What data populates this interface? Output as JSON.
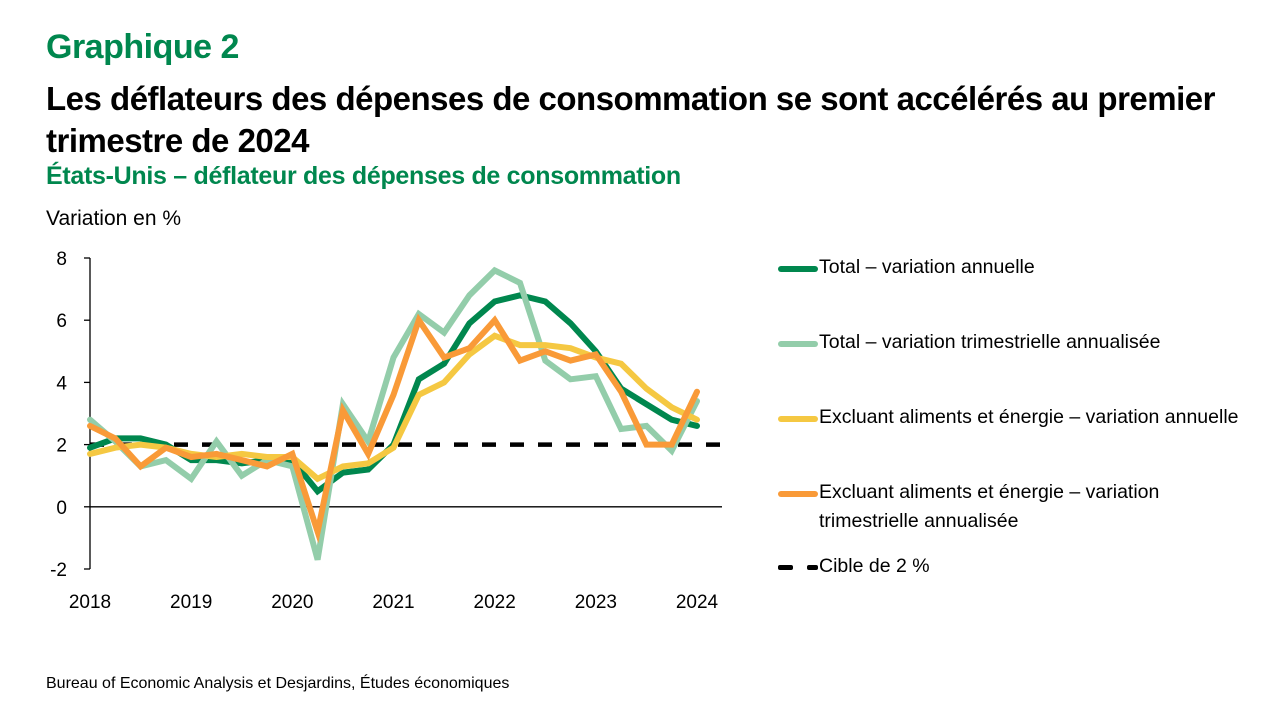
{
  "header": {
    "kicker": "Graphique 2",
    "title": "Les déflateurs des dépenses de consommation se sont accélérés au premier trimestre de 2024",
    "subtitle": "États-Unis – déflateur des dépenses de consommation",
    "y_unit_label": "Variation en %"
  },
  "footer": {
    "source": "Bureau of Economic Analysis et Desjardins, Études économiques"
  },
  "colors": {
    "total_annual": "#00874e",
    "total_quarterly": "#93cdaa",
    "core_annual": "#f5c842",
    "core_quarterly": "#f99a38",
    "target": "#000000",
    "title_green": "#00874e"
  },
  "chart_data": {
    "type": "line",
    "title": "États-Unis – déflateur des dépenses de consommation",
    "xlabel": "",
    "ylabel": "Variation en %",
    "ylim": [
      -2,
      8
    ],
    "yticks": [
      -2,
      0,
      2,
      4,
      6,
      8
    ],
    "xlim": [
      2018,
      2024
    ],
    "xticks": [
      "2018",
      "2019",
      "2020",
      "2021",
      "2022",
      "2023",
      "2024"
    ],
    "grid": false,
    "legend_position": "right",
    "x": [
      "2018T1",
      "2018T2",
      "2018T3",
      "2018T4",
      "2019T1",
      "2019T2",
      "2019T3",
      "2019T4",
      "2020T1",
      "2020T2",
      "2020T3",
      "2020T4",
      "2021T1",
      "2021T2",
      "2021T3",
      "2021T4",
      "2022T1",
      "2022T2",
      "2022T3",
      "2022T4",
      "2023T1",
      "2023T2",
      "2023T3",
      "2023T4",
      "2024T1"
    ],
    "series": [
      {
        "key": "total_annual",
        "name": "Total – variation annuelle",
        "values": [
          1.9,
          2.2,
          2.2,
          2.0,
          1.5,
          1.5,
          1.4,
          1.5,
          1.5,
          0.5,
          1.1,
          1.2,
          2.0,
          4.1,
          4.6,
          5.9,
          6.6,
          6.8,
          6.6,
          5.9,
          5.0,
          3.8,
          3.3,
          2.8,
          2.6
        ]
      },
      {
        "key": "total_quarterly",
        "name": "Total – variation trimestrielle annualisée",
        "values": [
          2.8,
          2.1,
          1.3,
          1.5,
          0.9,
          2.1,
          1.0,
          1.5,
          1.3,
          -1.7,
          3.3,
          2.1,
          4.8,
          6.2,
          5.6,
          6.8,
          7.6,
          7.2,
          4.7,
          4.1,
          4.2,
          2.5,
          2.6,
          1.8,
          3.4
        ]
      },
      {
        "key": "core_annual",
        "name": "Excluant aliments et énergie – variation annuelle",
        "values": [
          1.7,
          1.9,
          2.0,
          1.9,
          1.7,
          1.6,
          1.7,
          1.6,
          1.6,
          0.9,
          1.3,
          1.4,
          1.9,
          3.6,
          4.0,
          4.9,
          5.5,
          5.2,
          5.2,
          5.1,
          4.8,
          4.6,
          3.8,
          3.2,
          2.8
        ]
      },
      {
        "key": "core_quarterly",
        "name": "Excluant aliments et énergie – variation trimestrielle annualisée",
        "values": [
          2.6,
          2.2,
          1.3,
          1.9,
          1.6,
          1.7,
          1.5,
          1.3,
          1.7,
          -0.8,
          3.1,
          1.7,
          3.6,
          6.0,
          4.8,
          5.1,
          6.0,
          4.7,
          5.0,
          4.7,
          4.9,
          3.7,
          2.0,
          2.0,
          3.7
        ]
      },
      {
        "key": "target",
        "name": "Cible de 2 %",
        "style": "dashed",
        "constant": 2
      }
    ]
  },
  "legend": [
    {
      "key": "total_annual",
      "label": "Total – variation annuelle"
    },
    {
      "key": "total_quarterly",
      "label": "Total – variation trimestrielle annualisée"
    },
    {
      "key": "core_annual",
      "label": "Excluant aliments et énergie – variation annuelle"
    },
    {
      "key": "core_quarterly",
      "label": "Excluant aliments et énergie – variation trimestrielle annualisée"
    },
    {
      "key": "target",
      "label": "Cible de 2 %"
    }
  ]
}
